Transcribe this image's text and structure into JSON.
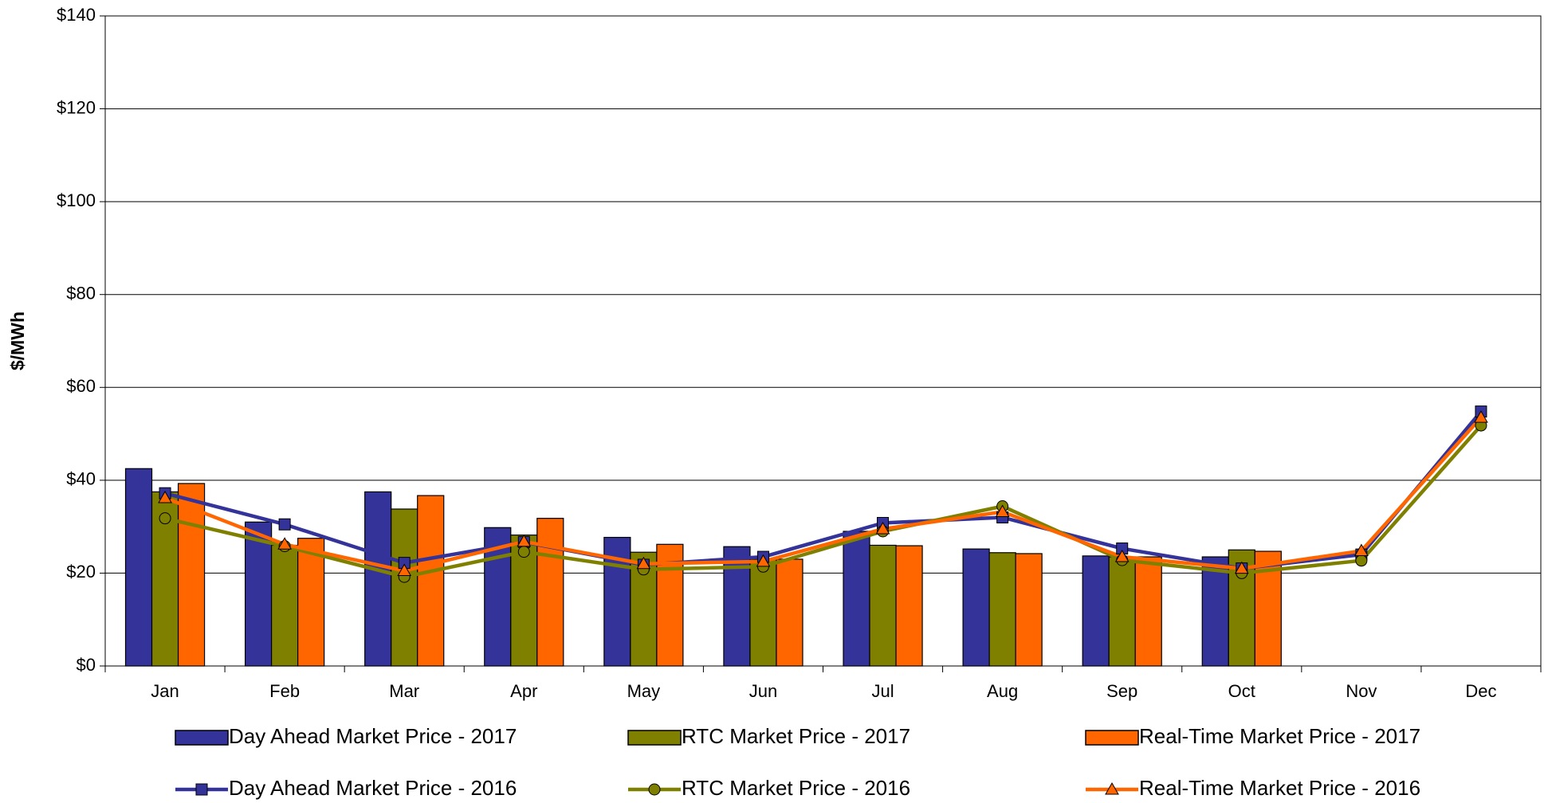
{
  "chart_data": {
    "type": "bar",
    "y_label": "$/MWh",
    "categories": [
      "Jan",
      "Feb",
      "Mar",
      "Apr",
      "May",
      "Jun",
      "Jul",
      "Aug",
      "Sep",
      "Oct",
      "Nov",
      "Dec"
    ],
    "ylim": [
      0,
      140
    ],
    "yticks": [
      {
        "value": 0,
        "label": "$0"
      },
      {
        "value": 20,
        "label": "$20"
      },
      {
        "value": 40,
        "label": "$40"
      },
      {
        "value": 60,
        "label": "$60"
      },
      {
        "value": 80,
        "label": "$80"
      },
      {
        "value": 100,
        "label": "$100"
      },
      {
        "value": 120,
        "label": "$120"
      },
      {
        "value": 140,
        "label": "$140"
      }
    ],
    "grid": true,
    "legend": "bottom",
    "series": [
      {
        "name": "Day Ahead Market Price - 2017",
        "type": "bar",
        "color": "#333399",
        "values": [
          42.5,
          31,
          37.5,
          29.8,
          27.7,
          25.7,
          29,
          25.2,
          23.7,
          23.5,
          null,
          null
        ]
      },
      {
        "name": "RTC Market Price - 2017",
        "type": "bar",
        "color": "#808000",
        "values": [
          37.5,
          26,
          33.8,
          28.2,
          24.5,
          23,
          26,
          24.4,
          23.5,
          25,
          null,
          null
        ]
      },
      {
        "name": "Real-Time Market Price - 2017",
        "type": "bar",
        "color": "#FF6600",
        "values": [
          39.3,
          27.5,
          36.7,
          31.8,
          26.2,
          23,
          25.9,
          24.2,
          23.5,
          24.7,
          null,
          null
        ]
      },
      {
        "name": "Day Ahead Market Price - 2016",
        "type": "line",
        "marker": "square",
        "color": "#333399",
        "values": [
          37.2,
          30.5,
          22.2,
          26.7,
          21.8,
          23.5,
          30.8,
          32,
          25.3,
          21,
          24,
          54.8
        ]
      },
      {
        "name": "RTC Market Price - 2016",
        "type": "line",
        "marker": "circle",
        "color": "#808000",
        "values": [
          31.8,
          25.8,
          19.2,
          24.6,
          20.8,
          21.4,
          29,
          34.4,
          22.8,
          20,
          22.7,
          51.8
        ]
      },
      {
        "name": "Real-Time Market Price - 2016",
        "type": "line",
        "marker": "triangle",
        "color": "#FF6600",
        "values": [
          36.2,
          26.2,
          20.5,
          26.8,
          22,
          22.5,
          29.5,
          33.2,
          23.5,
          21,
          24.8,
          53.5
        ]
      }
    ]
  }
}
